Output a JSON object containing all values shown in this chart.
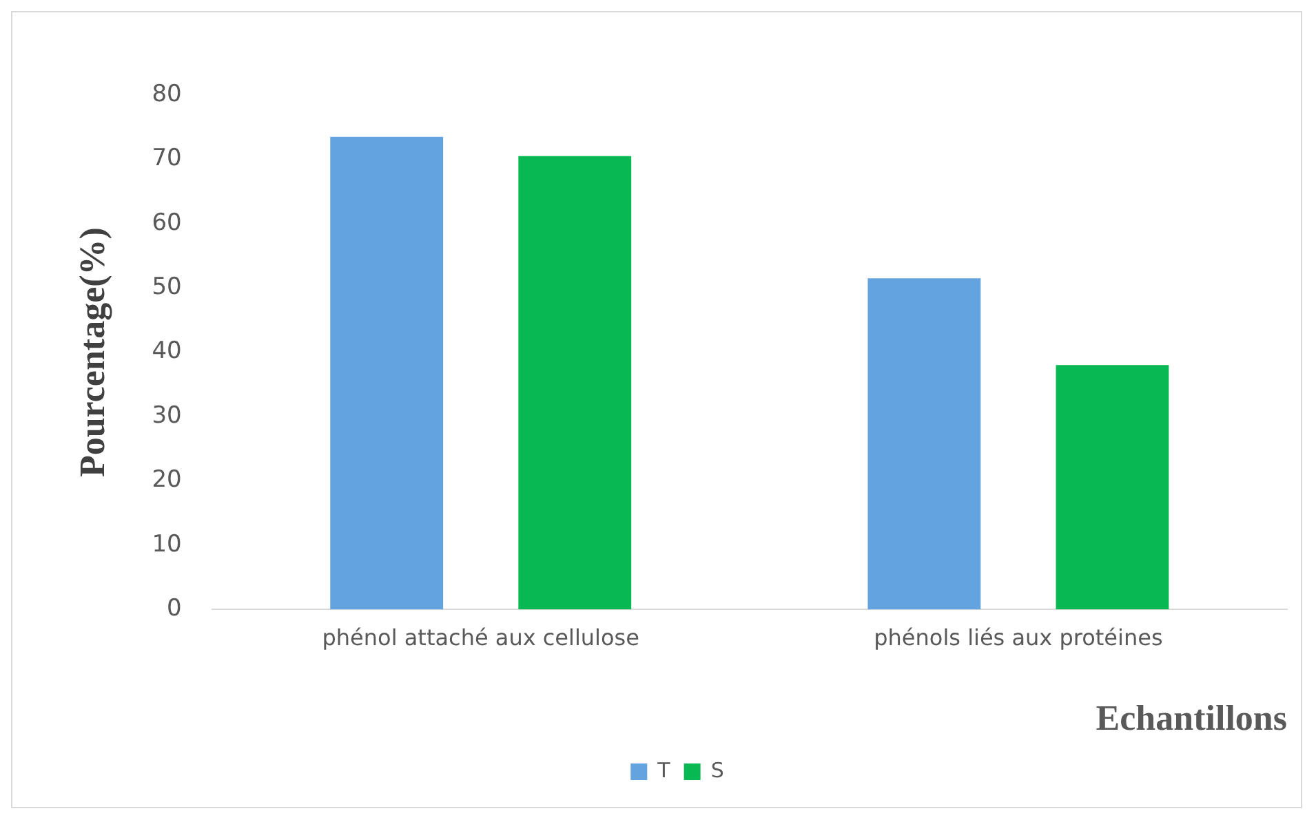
{
  "chart_data": {
    "type": "bar",
    "xlabel": "Echantillons",
    "ylabel": "Pourcentage(%)",
    "categories": [
      "phénol attaché aux cellulose",
      "phénols liés aux protéines"
    ],
    "series": [
      {
        "name": "T",
        "color": "#62a3e0",
        "values": [
          73.5,
          51.5
        ]
      },
      {
        "name": "S",
        "color": "#07b853",
        "values": [
          70.5,
          38
        ]
      }
    ],
    "ylim": [
      0,
      80
    ],
    "yticks": [
      0,
      10,
      20,
      30,
      40,
      50,
      60,
      70,
      80
    ],
    "grid": false,
    "legend": "bottom"
  }
}
